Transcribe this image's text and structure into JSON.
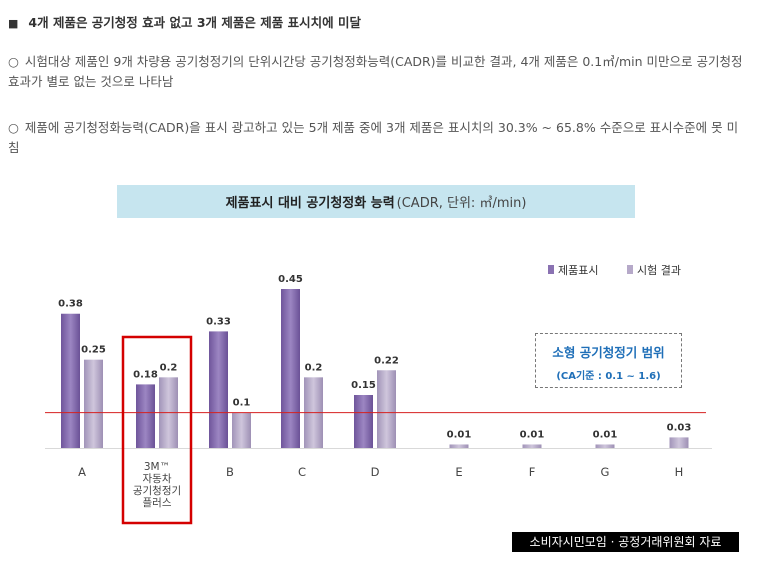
{
  "heading": {
    "bullet": "■",
    "text": "4개 제품은 공기청정 효과 없고 3개 제품은 제품 표시치에 미달"
  },
  "paragraphs": [
    {
      "mark": "○",
      "text": "시험대상 제품인 9개 차량용 공기청정기의 단위시간당 공기청정화능력(CADR)를 비교한 결과, 4개 제품은 0.1㎥/min 미만으로 공기청정효과가 별로 없는 것으로 나타남"
    },
    {
      "mark": "○",
      "text": "제품에 공기청정화능력(CADR)을 표시 광고하고 있는 5개 제품 중에 3개 제품은 표시치의 30.3% ~ 65.8% 수준으로 표시수준에 못 미침"
    }
  ],
  "chart_title": {
    "main": "제품표시 대비 공기청정화 능력",
    "sub": "(CADR, 단위: ㎥/min)"
  },
  "range_box": {
    "line1": "소형 공기청정기 범위",
    "line2": "(CA기준 : 0.1 ~ 1.6)"
  },
  "source": "소비자시민모임 · 공정거래위원회 자료",
  "colors": {
    "labeled": "#8a72b2",
    "tested": "#b6a9c9",
    "threshold_line": "#d62020",
    "highlight_box": "#d40000",
    "title_bg": "#c6e5ef"
  },
  "chart_data": {
    "type": "bar",
    "categories": [
      "A",
      "3M™ 자동차 공기청정기 플러스",
      "B",
      "C",
      "D",
      "E",
      "F",
      "G",
      "H"
    ],
    "category_lines": [
      [
        "A"
      ],
      [
        "3M™",
        "자동차",
        "공기청정기",
        "플러스"
      ],
      [
        "B"
      ],
      [
        "C"
      ],
      [
        "D"
      ],
      [
        "E"
      ],
      [
        "F"
      ],
      [
        "G"
      ],
      [
        "H"
      ]
    ],
    "series": [
      {
        "name": "제품표시",
        "values": [
          0.38,
          0.18,
          0.33,
          0.45,
          0.15,
          null,
          null,
          null,
          null
        ]
      },
      {
        "name": "시험 결과",
        "values": [
          0.25,
          0.2,
          0.1,
          0.2,
          0.22,
          0.01,
          0.01,
          0.01,
          0.03
        ]
      }
    ],
    "value_labels": [
      [
        "0.38",
        "0.18",
        "0.33",
        "0.45",
        "0.15",
        null,
        null,
        null,
        null
      ],
      [
        "0.25",
        "0.2",
        "0.1",
        "0.2",
        "0.22",
        "0.01",
        "0.01",
        "0.01",
        "0.03"
      ]
    ],
    "reference_line": 0.1,
    "highlighted_category": "3M™ 자동차 공기청정기 플러스",
    "ylim": [
      0,
      0.45
    ],
    "grid": false,
    "legend_position": "top-right"
  }
}
